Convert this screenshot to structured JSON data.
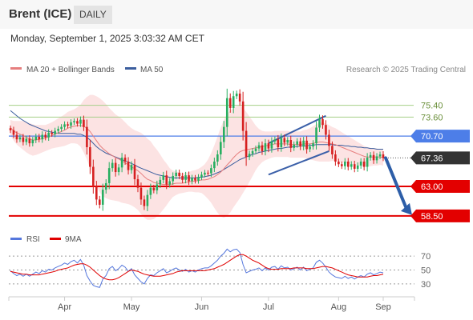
{
  "header": {
    "instrument": "Brent (ICE)",
    "interval": "DAILY",
    "timestamp": "Monday, September 1, 2025 3:03:32 AM CET"
  },
  "legend": {
    "ma20": "MA 20 + Bollinger Bands",
    "ma50": "MA 50",
    "credit": "Research © 2025 Trading Central",
    "rsi": "RSI",
    "rsi_ma": "9MA"
  },
  "colors": {
    "bull": "#27ae60",
    "bear": "#d62020",
    "ma20": "#e67e7e",
    "ma50": "#3b5e9e",
    "band": "#fcdede",
    "resistance_green": "#a6cf88",
    "level_blue": "#4d7ee8",
    "level_red": "#e30000",
    "price_tag": "#333333",
    "trend_arrow": "#2d5ea8",
    "rsi": "#5577dd",
    "rsi_ma": "#e00000"
  },
  "chart_data": [
    {
      "type": "candlestick",
      "x_ticks": [
        "Apr",
        "May",
        "Jun",
        "Jul",
        "Aug",
        "Sep"
      ],
      "ylim": [
        57.5,
        80.5
      ],
      "last_price": 67.36,
      "levels": [
        {
          "value": 75.4,
          "label": "75.40",
          "kind": "resistance"
        },
        {
          "value": 73.6,
          "label": "73.60",
          "kind": "resistance"
        },
        {
          "value": 70.7,
          "label": "70.70",
          "kind": "pivot"
        },
        {
          "value": 67.36,
          "label": "67.36",
          "kind": "last"
        },
        {
          "value": 63.0,
          "label": "63.00",
          "kind": "support"
        },
        {
          "value": 58.5,
          "label": "58.50",
          "kind": "support"
        }
      ],
      "closes": [
        71.6,
        70.9,
        70.2,
        70.5,
        69.8,
        70.3,
        69.6,
        70.1,
        70.6,
        70.2,
        70.9,
        70.5,
        71.2,
        71.0,
        71.5,
        71.8,
        72.1,
        72.5,
        72.3,
        72.8,
        73.0,
        72.6,
        73.2,
        72.1,
        69.0,
        66.0,
        63.0,
        61.0,
        60.2,
        62.5,
        63.5,
        65.8,
        66.6,
        65.2,
        65.9,
        67.4,
        66.8,
        65.5,
        66.3,
        64.1,
        62.8,
        61.0,
        60.0,
        61.7,
        62.8,
        62.4,
        63.3,
        64.0,
        64.7,
        63.3,
        63.8,
        64.6,
        65.1,
        64.6,
        64.0,
        64.7,
        63.8,
        64.3,
        63.9,
        64.4,
        64.8,
        65.1,
        65.0,
        65.8,
        66.8,
        67.9,
        69.8,
        72.1,
        76.5,
        75.0,
        76.8,
        77.2,
        76.0,
        71.5,
        67.5,
        68.0,
        68.4,
        68.8,
        69.3,
        68.4,
        69.6,
        68.8,
        69.9,
        70.2,
        69.0,
        70.4,
        69.7,
        70.1,
        68.9,
        69.4,
        69.9,
        69.1,
        70.0,
        68.7,
        69.1,
        69.6,
        72.0,
        73.3,
        72.4,
        70.9,
        69.2,
        67.9,
        66.8,
        66.4,
        66.1,
        66.8,
        66.0,
        66.4,
        65.7,
        66.2,
        66.8,
        66.0,
        67.4,
        67.8,
        67.0,
        67.6,
        67.9,
        67.36
      ],
      "ma20": [
        72.0,
        71.5,
        71.2,
        71.0,
        70.8,
        70.5,
        70.3,
        70.1,
        70.1,
        70.2,
        70.3,
        70.4,
        70.6,
        70.8,
        71.0,
        71.2,
        71.4,
        71.6,
        71.9,
        72.1,
        72.2,
        72.3,
        72.3,
        72.2,
        71.9,
        71.4,
        70.7,
        70.0,
        69.3,
        68.8,
        68.4,
        68.0,
        67.7,
        67.4,
        67.2,
        66.9,
        66.6,
        66.3,
        66.0,
        65.7,
        65.4,
        65.0,
        64.5,
        64.1,
        63.9,
        63.6,
        63.5,
        63.4,
        63.3,
        63.3,
        63.3,
        63.4,
        63.5,
        63.5,
        63.5,
        63.6,
        63.7,
        63.8,
        63.8,
        63.9,
        64.0,
        64.0,
        64.1,
        64.3,
        64.5,
        64.8,
        65.2,
        65.7,
        66.3,
        66.8,
        67.4,
        67.9,
        68.3,
        68.5,
        68.6,
        68.7,
        68.8,
        68.9,
        69.0,
        69.1,
        69.2,
        69.3,
        69.4,
        69.5,
        69.5,
        69.5,
        69.5,
        69.5,
        69.4,
        69.4,
        69.4,
        69.4,
        69.5,
        69.5,
        69.5,
        69.6,
        69.7,
        69.8,
        69.8,
        69.7,
        69.6,
        69.5,
        69.4,
        69.2,
        69.0,
        68.8,
        68.6,
        68.4,
        68.2,
        68.0,
        67.8,
        67.6,
        67.5,
        67.5,
        67.5,
        67.5,
        67.5,
        67.4
      ],
      "ma50": [
        74.6,
        74.2,
        73.8,
        73.4,
        73.1,
        72.8,
        72.5,
        72.3,
        72.1,
        71.9,
        71.7,
        71.5,
        71.4,
        71.3,
        71.2,
        71.1,
        71.1,
        71.1,
        71.1,
        71.1,
        71.1,
        71.0,
        71.0,
        70.8,
        70.5,
        70.1,
        69.6,
        69.1,
        68.7,
        68.4,
        68.1,
        67.9,
        67.7,
        67.5,
        67.3,
        67.1,
        66.9,
        66.7,
        66.5,
        66.3,
        66.0,
        65.8,
        65.6,
        65.4,
        65.2,
        65.0,
        64.8,
        64.7,
        64.6,
        64.5,
        64.4,
        64.3,
        64.3,
        64.3,
        64.3,
        64.3,
        64.3,
        64.3,
        64.3,
        64.4,
        64.4,
        64.5,
        64.6,
        64.7,
        64.9,
        65.1,
        65.3,
        65.6,
        65.9,
        66.2,
        66.5,
        66.8,
        67.1,
        67.3,
        67.5,
        67.7,
        67.9,
        68.0,
        68.2,
        68.3,
        68.4,
        68.5,
        68.6,
        68.7,
        68.8,
        68.8,
        68.9,
        69.0,
        69.0,
        69.1,
        69.1,
        69.2,
        69.2,
        69.2,
        69.3,
        69.3,
        69.4,
        69.4,
        69.4,
        69.4,
        69.4,
        69.4,
        69.3,
        69.3,
        69.3,
        69.2,
        69.2,
        69.1,
        69.1,
        69.0,
        69.0,
        68.9,
        68.9,
        68.8,
        68.8,
        68.7,
        68.7,
        68.7
      ],
      "band_halfwidth": [
        1.2,
        1.5,
        1.8,
        2.0,
        2.2,
        2.3,
        2.4,
        2.4,
        2.3,
        2.2,
        2.1,
        2.0,
        2.0,
        2.0,
        2.1,
        2.2,
        2.3,
        2.4,
        2.5,
        2.5,
        2.6,
        2.8,
        3.2,
        4.0,
        4.8,
        5.6,
        6.3,
        6.8,
        7.2,
        7.3,
        7.2,
        7.0,
        6.8,
        6.6,
        6.5,
        6.4,
        6.2,
        6.0,
        5.9,
        5.9,
        6.0,
        6.2,
        6.3,
        6.2,
        6.0,
        5.6,
        5.1,
        4.5,
        3.8,
        3.2,
        2.5,
        2.0,
        1.8,
        1.6,
        1.5,
        1.5,
        1.5,
        1.6,
        1.7,
        1.8,
        2.0,
        2.4,
        3.0,
        3.8,
        4.8,
        5.8,
        6.8,
        7.5,
        7.8,
        7.8,
        7.6,
        7.4,
        7.1,
        6.5,
        5.8,
        5.0,
        4.2,
        3.4,
        2.8,
        2.4,
        2.2,
        2.1,
        2.0,
        2.0,
        2.0,
        2.0,
        2.0,
        2.0,
        2.0,
        2.0,
        2.0,
        2.0,
        2.1,
        2.2,
        2.4,
        2.6,
        2.8,
        3.0,
        3.0,
        2.9,
        2.8,
        2.6,
        2.5,
        2.4,
        2.3,
        2.2,
        2.1,
        2.0,
        1.9,
        1.8,
        1.7,
        1.6,
        1.5,
        1.4,
        1.3,
        1.3,
        1.2,
        1.2
      ],
      "forecast": {
        "from": 67.36,
        "to": 58.5
      }
    },
    {
      "type": "line",
      "name": "RSI",
      "y_ticks": [
        70,
        50,
        30
      ],
      "ylim": [
        15,
        85
      ],
      "rsi": [
        49,
        45,
        42,
        44,
        41,
        44,
        41,
        44,
        47,
        45,
        49,
        47,
        51,
        50,
        53,
        55,
        57,
        60,
        58,
        62,
        64,
        60,
        65,
        57,
        42,
        34,
        28,
        26,
        25,
        37,
        42,
        52,
        55,
        49,
        52,
        57,
        54,
        48,
        52,
        43,
        38,
        33,
        30,
        38,
        43,
        42,
        46,
        49,
        52,
        46,
        48,
        51,
        53,
        50,
        48,
        51,
        47,
        49,
        47,
        50,
        52,
        53,
        53,
        56,
        60,
        64,
        70,
        74,
        80,
        76,
        79,
        80,
        75,
        58,
        46,
        48,
        50,
        51,
        53,
        49,
        53,
        50,
        54,
        55,
        51,
        56,
        53,
        54,
        50,
        52,
        54,
        50,
        54,
        49,
        51,
        53,
        61,
        64,
        60,
        54,
        47,
        43,
        40,
        39,
        38,
        41,
        38,
        40,
        37,
        40,
        42,
        40,
        44,
        46,
        43,
        45,
        47,
        46
      ],
      "ma9": [
        48,
        47,
        46,
        45,
        44,
        44,
        43,
        43,
        43,
        43,
        44,
        45,
        46,
        47,
        48,
        50,
        51,
        52,
        53,
        55,
        57,
        58,
        59,
        59,
        57,
        54,
        50,
        46,
        42,
        39,
        37,
        36,
        36,
        37,
        39,
        42,
        45,
        48,
        50,
        49,
        48,
        46,
        44,
        43,
        42,
        41,
        41,
        41,
        42,
        43,
        44,
        45,
        47,
        48,
        49,
        49,
        49,
        49,
        49,
        49,
        49,
        49,
        50,
        51,
        52,
        54,
        56,
        58,
        61,
        64,
        67,
        70,
        72,
        72,
        70,
        67,
        64,
        62,
        60,
        57,
        54,
        52,
        51,
        51,
        51,
        52,
        52,
        52,
        52,
        53,
        53,
        53,
        53,
        52,
        52,
        52,
        53,
        54,
        55,
        55,
        54,
        53,
        51,
        49,
        47,
        45,
        43,
        42,
        41,
        40,
        40,
        40,
        40,
        41,
        42,
        42,
        43,
        44
      ]
    }
  ]
}
